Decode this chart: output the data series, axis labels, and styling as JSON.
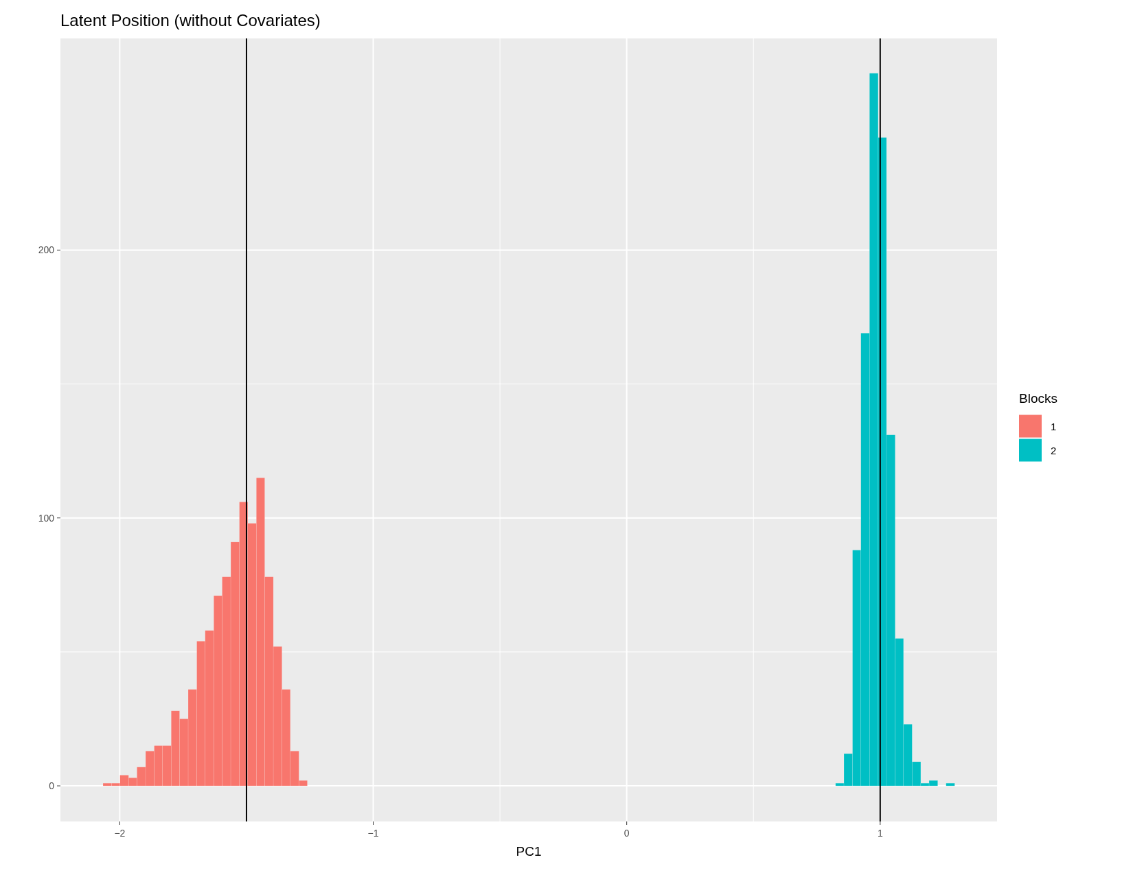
{
  "chart_data": {
    "type": "histogram",
    "title": "Latent Position (without Covariates)",
    "xlabel": "PC1",
    "legend_title": "Blocks",
    "legend": "right",
    "grid": true,
    "xlim": [
      -2.234,
      1.461
    ],
    "xticks": [
      {
        "value": -2,
        "label": "−2"
      },
      {
        "value": -1,
        "label": "−1"
      },
      0,
      1
    ],
    "ylim": [
      -13.3,
      279
    ],
    "yticks": [
      0,
      100,
      200
    ],
    "bins": [
      -2.066,
      -2.032,
      -1.999,
      -1.965,
      -1.932,
      -1.898,
      -1.864,
      -1.831,
      -1.797,
      -1.764,
      -1.73,
      -1.696,
      -1.663,
      -1.629,
      -1.596,
      -1.562,
      -1.528,
      -1.495,
      -1.461,
      -1.428,
      -1.394,
      -1.36,
      -1.327,
      -1.293,
      -1.26,
      -1.226,
      -1.192,
      -1.159,
      -1.125,
      -1.092,
      -1.058,
      -1.024,
      -0.991,
      -0.957,
      -0.924,
      -0.89,
      -0.856,
      -0.823,
      -0.789,
      -0.756,
      -0.722,
      -0.688,
      -0.655,
      -0.621,
      -0.588,
      -0.554,
      -0.52,
      -0.487,
      -0.453,
      -0.42,
      -0.386,
      -0.352,
      -0.319,
      -0.285,
      -0.252,
      -0.218,
      -0.184,
      -0.151,
      -0.117,
      -0.084,
      -0.05,
      -0.016,
      0.017,
      0.051,
      0.084,
      0.118,
      0.152,
      0.185,
      0.219,
      0.252,
      0.286,
      0.32,
      0.353,
      0.387,
      0.42,
      0.454,
      0.488,
      0.521,
      0.555,
      0.588,
      0.622,
      0.656,
      0.689,
      0.723,
      0.756,
      0.79,
      0.824,
      0.857,
      0.891,
      0.924,
      0.958,
      0.992,
      1.025,
      1.059,
      1.092,
      1.126,
      1.16,
      1.193,
      1.227,
      1.26,
      1.294
    ],
    "series": [
      {
        "name": "1",
        "color": "#f8766d",
        "values": [
          1,
          1,
          4,
          3,
          7,
          13,
          15,
          15,
          28,
          25,
          36,
          54,
          58,
          71,
          78,
          91,
          106,
          98,
          115,
          78,
          52,
          36,
          13,
          2,
          0,
          0,
          0,
          0,
          0,
          0,
          0,
          0,
          0,
          0,
          0,
          0,
          0,
          0,
          0,
          0,
          0,
          0,
          0,
          0,
          0,
          0,
          0,
          0,
          0,
          0,
          0,
          0,
          0,
          0,
          0,
          0,
          0,
          0,
          0,
          0,
          0,
          0,
          0,
          0,
          0,
          0,
          0,
          0,
          0,
          0,
          0,
          0,
          0,
          0,
          0,
          0,
          0,
          0,
          0,
          0,
          0,
          0,
          0,
          0,
          0,
          0,
          null,
          null,
          null,
          null,
          null,
          null,
          null,
          null,
          null,
          null,
          null,
          null,
          null,
          null
        ]
      },
      {
        "name": "2",
        "color": "#00bfc4",
        "values": [
          null,
          null,
          null,
          null,
          null,
          null,
          null,
          null,
          null,
          null,
          null,
          null,
          null,
          null,
          null,
          null,
          null,
          null,
          null,
          null,
          null,
          null,
          null,
          null,
          null,
          null,
          null,
          null,
          null,
          null,
          null,
          null,
          null,
          null,
          null,
          null,
          null,
          null,
          null,
          null,
          null,
          null,
          null,
          null,
          null,
          null,
          null,
          null,
          null,
          null,
          null,
          null,
          null,
          null,
          null,
          null,
          null,
          null,
          null,
          null,
          null,
          null,
          null,
          null,
          null,
          null,
          null,
          null,
          null,
          null,
          null,
          null,
          null,
          null,
          null,
          null,
          null,
          null,
          null,
          null,
          null,
          null,
          null,
          null,
          null,
          null,
          1,
          12,
          88,
          169,
          266,
          242,
          131,
          55,
          23,
          9,
          1,
          2,
          0,
          1
        ]
      }
    ],
    "ref_lines": [
      {
        "axis": "x",
        "value": -1.5,
        "color": "#000000"
      },
      {
        "axis": "x",
        "value": 1,
        "color": "#000000"
      }
    ]
  }
}
